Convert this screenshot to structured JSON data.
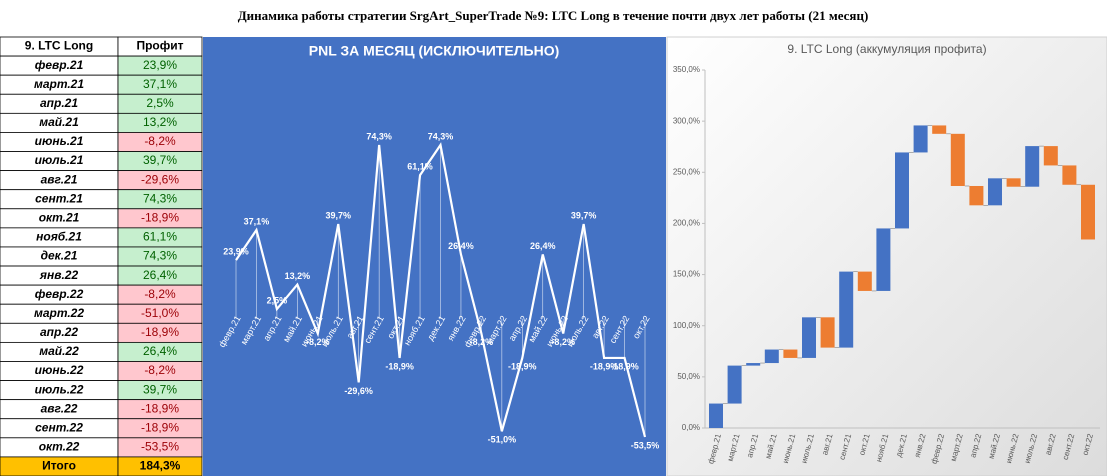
{
  "title": "Динамика работы стратегии SrgArt_SuperTrade №9: LTC Long в течение почти двух лет работы (21 месяц)",
  "table": {
    "columns": [
      "9. LTC Long",
      "Профит"
    ],
    "rows": [
      [
        "февр.21",
        "23,9%"
      ],
      [
        "март.21",
        "37,1%"
      ],
      [
        "апр.21",
        "2,5%"
      ],
      [
        "май.21",
        "13,2%"
      ],
      [
        "июнь.21",
        "-8,2%"
      ],
      [
        "июль.21",
        "39,7%"
      ],
      [
        "авг.21",
        "-29,6%"
      ],
      [
        "сент.21",
        "74,3%"
      ],
      [
        "окт.21",
        "-18,9%"
      ],
      [
        "нояб.21",
        "61,1%"
      ],
      [
        "дек.21",
        "74,3%"
      ],
      [
        "янв.22",
        "26,4%"
      ],
      [
        "февр.22",
        "-8,2%"
      ],
      [
        "март.22",
        "-51,0%"
      ],
      [
        "апр.22",
        "-18,9%"
      ],
      [
        "май.22",
        "26,4%"
      ],
      [
        "июнь.22",
        "-8,2%"
      ],
      [
        "июль.22",
        "39,7%"
      ],
      [
        "авг.22",
        "-18,9%"
      ],
      [
        "сент.22",
        "-18,9%"
      ],
      [
        "окт.22",
        "-53,5%"
      ]
    ],
    "total": [
      "Итого",
      "184,3%"
    ]
  },
  "chart_data": [
    {
      "type": "line",
      "title": "PNL ЗА МЕСЯЦ (ИСКЛЮЧИТЕЛЬНО)",
      "color": "#ffffff",
      "background": "#4472c4",
      "categories": [
        "февр.21",
        "март.21",
        "апр.21",
        "май.21",
        "июнь.21",
        "июль.21",
        "авг.21",
        "сент.21",
        "окт.21",
        "нояб.21",
        "дек.21",
        "янв.22",
        "февр.22",
        "март.22",
        "апр.22",
        "май.22",
        "июнь.22",
        "июль.22",
        "авг.22",
        "сент.22",
        "окт.22"
      ],
      "values": [
        23.9,
        37.1,
        2.5,
        13.2,
        -8.2,
        39.7,
        -29.6,
        74.3,
        -18.9,
        61.1,
        74.3,
        26.4,
        -8.2,
        -51.0,
        -18.9,
        26.4,
        -8.2,
        39.7,
        -18.9,
        -18.9,
        -53.5
      ],
      "value_labels": [
        "23,9%",
        "37,1%",
        "2,5%",
        "13,2%",
        "-8,2%",
        "39,7%",
        "-29,6%",
        "74,3%",
        "-18,9%",
        "61,1%",
        "74,3%",
        "26,4%",
        "-8,2%",
        "-51,0%",
        "-18,9%",
        "26,4%",
        "-8,2%",
        "39,7%",
        "-18,9%",
        "-18,9%",
        "-53,5%"
      ]
    },
    {
      "type": "waterfall",
      "title": "9. LTC Long (аккумуляция профита)",
      "color_up": "#4472c4",
      "color_down": "#ed7d31",
      "categories": [
        "февр.21",
        "март.21",
        "апр.21",
        "май.21",
        "июнь.21",
        "июль.21",
        "авг.21",
        "сент.21",
        "окт.21",
        "нояб.21",
        "дек.21",
        "янв.22",
        "февр.22",
        "март.22",
        "апр.22",
        "май.22",
        "июнь.22",
        "июль.22",
        "авг.22",
        "сент.22",
        "окт.22"
      ],
      "values": [
        23.9,
        37.1,
        2.5,
        13.2,
        -8.2,
        39.7,
        -29.6,
        74.3,
        -18.9,
        61.1,
        74.3,
        26.4,
        -8.2,
        -51.0,
        -18.9,
        26.4,
        -8.2,
        39.7,
        -18.9,
        -18.9,
        -53.5
      ],
      "ylim": [
        0,
        350
      ],
      "yticks": [
        {
          "value": 0,
          "label": "0,0%"
        },
        {
          "value": 50,
          "label": "50,0%"
        },
        {
          "value": 100,
          "label": "100,0%"
        },
        {
          "value": 150,
          "label": "150,0%"
        },
        {
          "value": 200,
          "label": "200,0%"
        },
        {
          "value": 250,
          "label": "250,0%"
        },
        {
          "value": 300,
          "label": "300,0%"
        },
        {
          "value": 350,
          "label": "350,0%"
        }
      ]
    }
  ]
}
